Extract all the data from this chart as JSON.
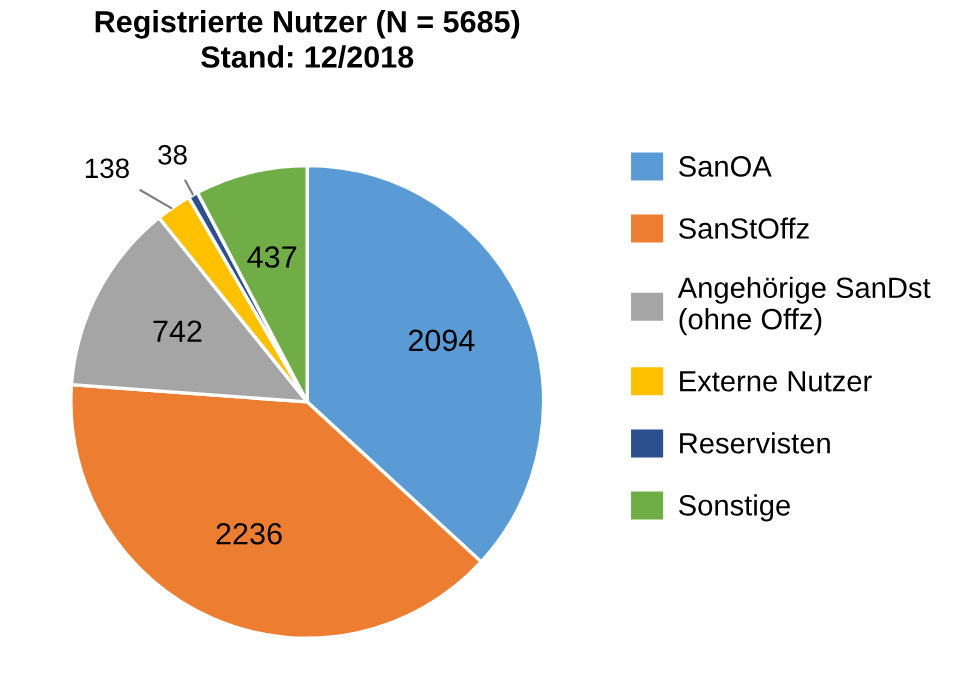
{
  "chart_data": {
    "type": "pie",
    "title": "Registrierte Nutzer (N = 5685)\nStand: 12/2018",
    "categories": [
      "SanOA",
      "SanStOffz",
      "Angehörige SanDst\n(ohne Offz)",
      "Externe Nutzer",
      "Reservisten",
      "Sonstige"
    ],
    "values": [
      2094,
      2236,
      742,
      138,
      38,
      437
    ],
    "colors": [
      "#5b9bd5",
      "#ed7d31",
      "#a5a5a5",
      "#ffc000",
      "#2e4f8f",
      "#70ad47"
    ],
    "data_labels": true,
    "legend": "right"
  }
}
